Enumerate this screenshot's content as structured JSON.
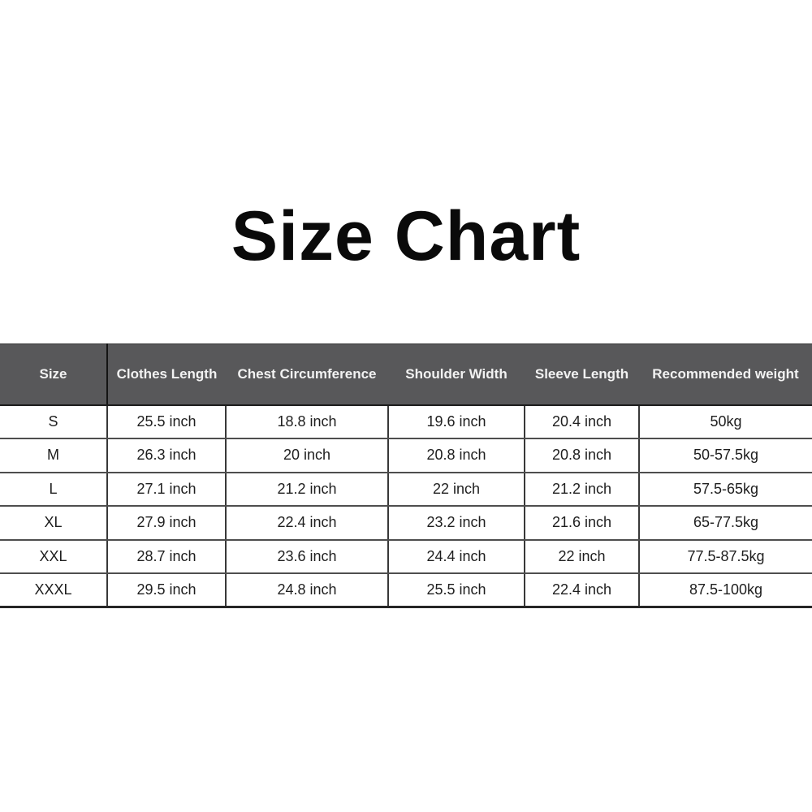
{
  "page": {
    "title": "Size Chart"
  },
  "colors": {
    "background": "#ffffff",
    "header_bg": "#58585a",
    "header_text": "#f2f2f2",
    "grid_line": "#3a3a3a",
    "cell_text": "#1e1e1e",
    "title_text": "#0a0a0a"
  },
  "chart_data": {
    "type": "table",
    "title": "Size Chart",
    "columns": [
      {
        "key": "size",
        "label": "Size"
      },
      {
        "key": "clothes_length",
        "label": "Clothes Length"
      },
      {
        "key": "chest_circumference",
        "label": "Chest Circumference"
      },
      {
        "key": "shoulder_width",
        "label": "Shoulder Width"
      },
      {
        "key": "sleeve_length",
        "label": "Sleeve Length"
      },
      {
        "key": "recommended_weight",
        "label": "Recommended weight"
      }
    ],
    "rows": [
      [
        "S",
        "25.5 inch",
        "18.8 inch",
        "19.6 inch",
        "20.4 inch",
        "50kg"
      ],
      [
        "M",
        "26.3 inch",
        "20 inch",
        "20.8 inch",
        "20.8 inch",
        "50-57.5kg"
      ],
      [
        "L",
        "27.1 inch",
        "21.2 inch",
        "22 inch",
        "21.2 inch",
        "57.5-65kg"
      ],
      [
        "XL",
        "27.9 inch",
        "22.4 inch",
        "23.2 inch",
        "21.6 inch",
        "65-77.5kg"
      ],
      [
        "XXL",
        "28.7 inch",
        "23.6 inch",
        "24.4 inch",
        "22 inch",
        "77.5-87.5kg"
      ],
      [
        "XXXL",
        "29.5 inch",
        "24.8 inch",
        "25.5 inch",
        "22.4 inch",
        "87.5-100kg"
      ]
    ]
  }
}
